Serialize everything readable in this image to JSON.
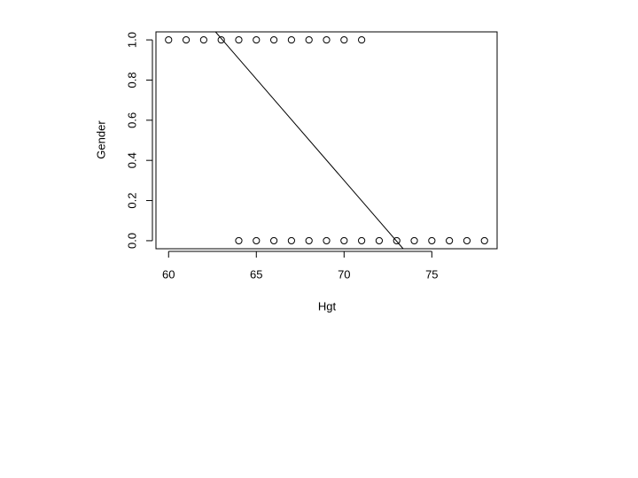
{
  "chart_data": {
    "type": "scatter",
    "xlabel": "Hgt",
    "ylabel": "Gender",
    "x": [
      60,
      61,
      62,
      63,
      64,
      65,
      66,
      67,
      68,
      69,
      70,
      71,
      64,
      65,
      66,
      67,
      68,
      69,
      70,
      71,
      72,
      73,
      74,
      75,
      76,
      77,
      78
    ],
    "values": [
      1,
      1,
      1,
      1,
      1,
      1,
      1,
      1,
      1,
      1,
      1,
      1,
      0,
      0,
      0,
      0,
      0,
      0,
      0,
      0,
      0,
      0,
      0,
      0,
      0,
      0,
      0
    ],
    "color": "#000000",
    "fit": {
      "intercept": 7.37,
      "slope": -0.101
    },
    "xlim": [
      59.28,
      78.72
    ],
    "ylim": [
      -0.04,
      1.04
    ],
    "xticks": [
      60,
      65,
      70,
      75
    ],
    "yticks": [
      {
        "value": 0,
        "label": "0.0"
      },
      0.2,
      0.4,
      0.6,
      0.8,
      {
        "value": 1,
        "label": "1.0"
      }
    ]
  }
}
